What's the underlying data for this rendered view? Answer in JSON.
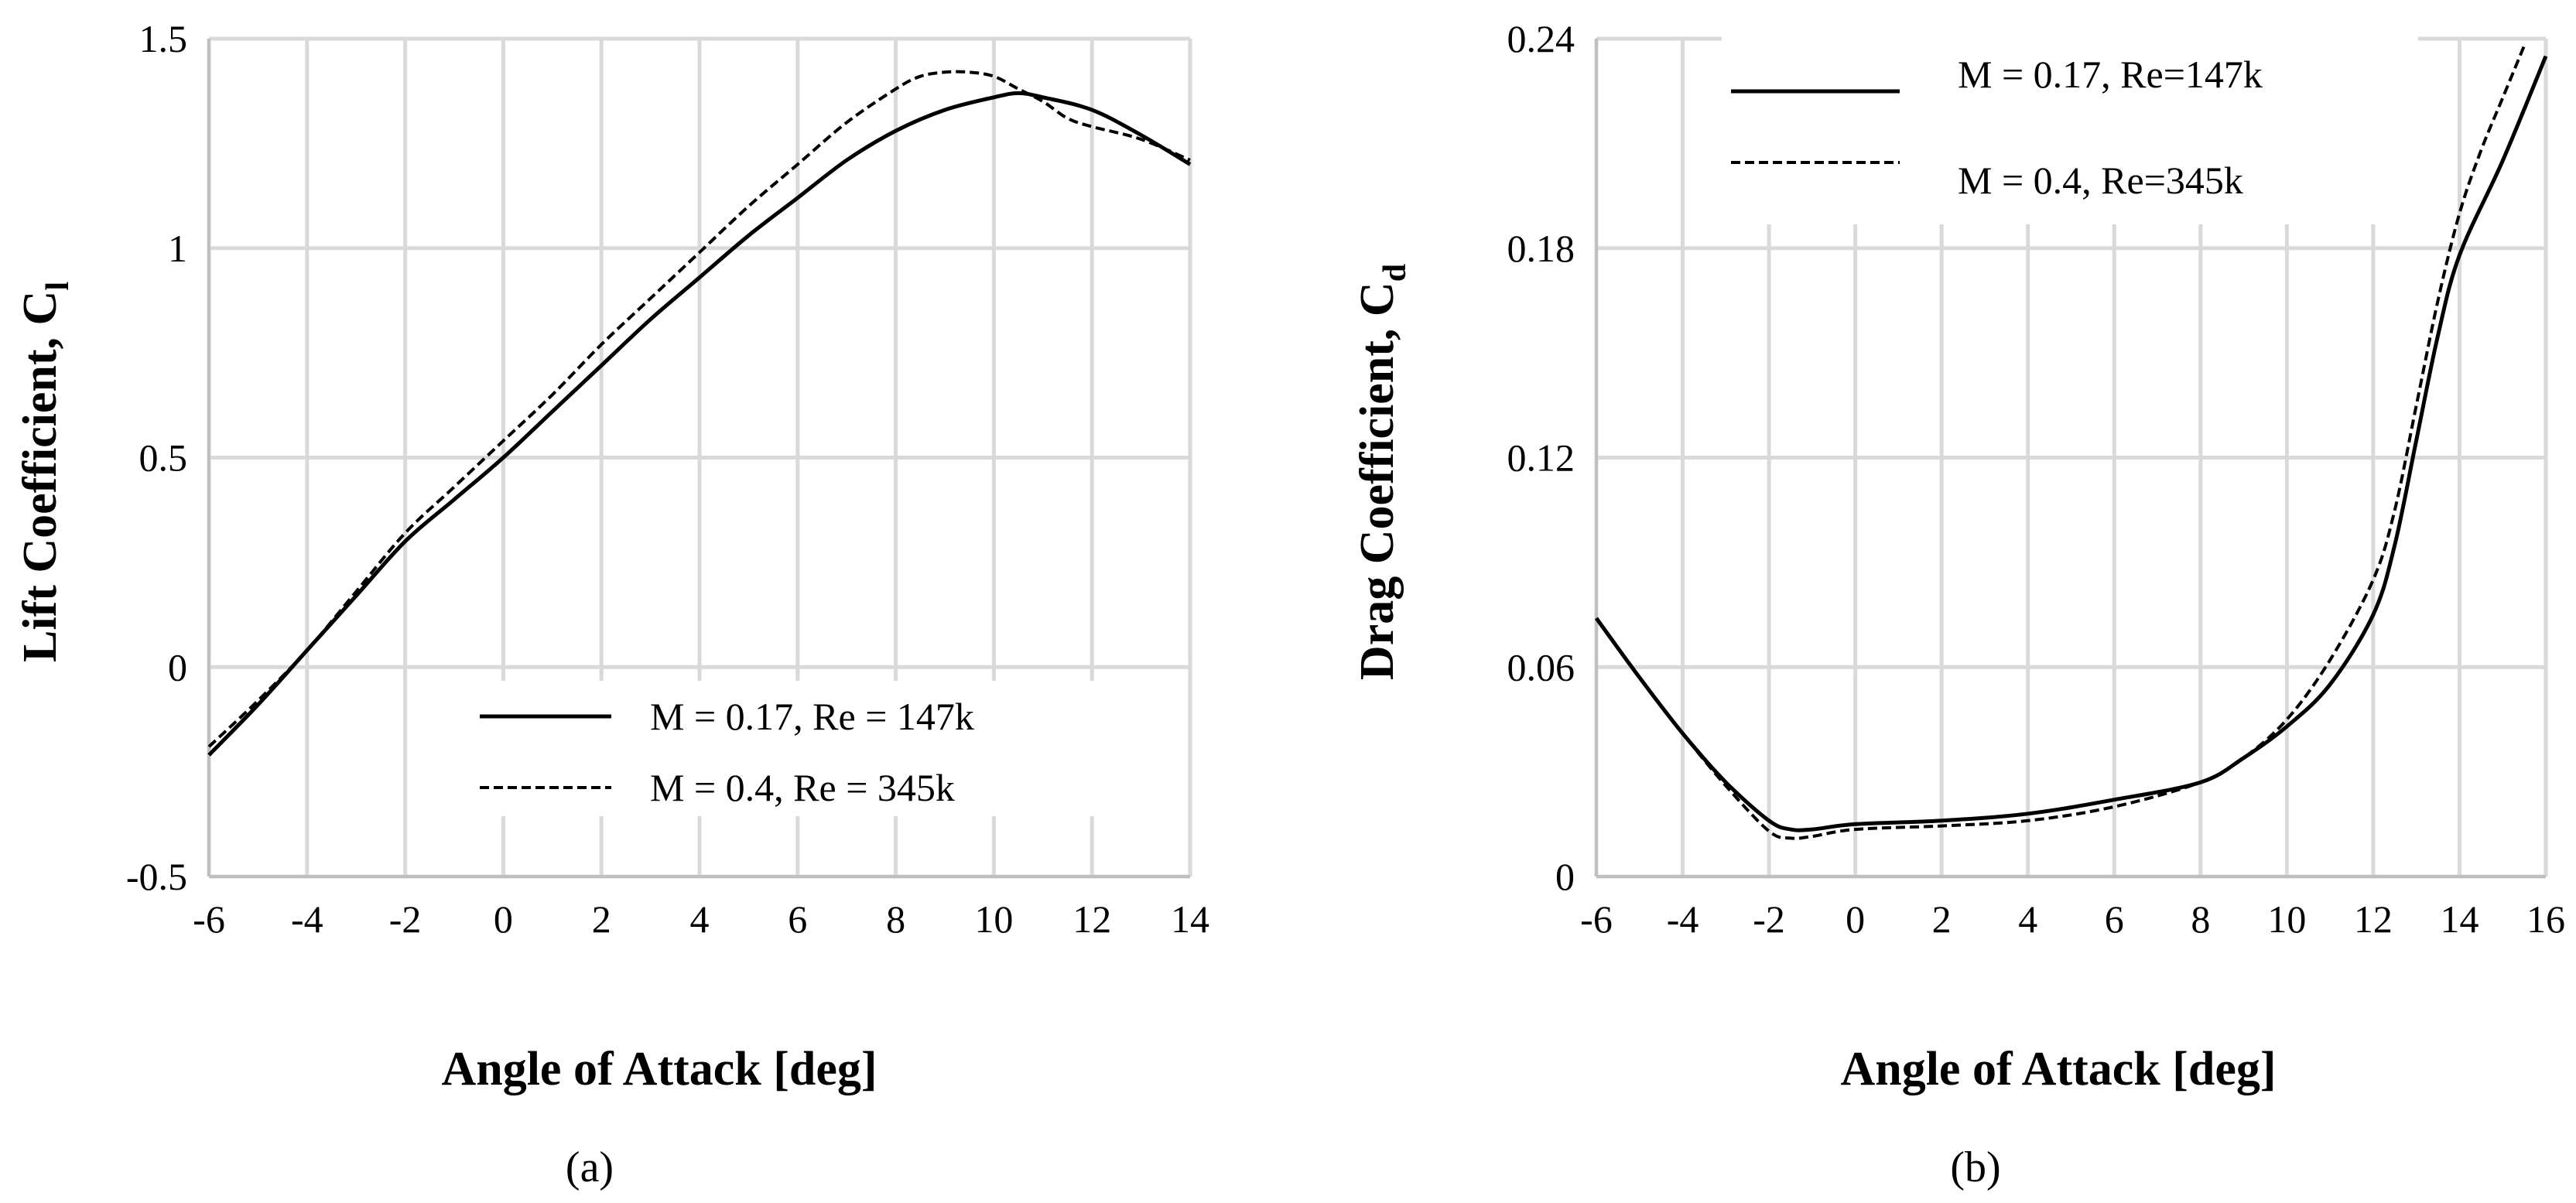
{
  "chart_data": [
    {
      "type": "line",
      "panel_label": "(a)",
      "title": "",
      "xlabel": "Angle of Attack [deg]",
      "ylabel": "Lift Coefficient, C",
      "ylabel_subscript": "l",
      "xlim": [
        -6,
        14
      ],
      "ylim": [
        -0.5,
        1.5
      ],
      "xticks": [
        "-6",
        "-4",
        "-2",
        "0",
        "2",
        "4",
        "6",
        "8",
        "10",
        "12",
        "14"
      ],
      "yticks": [
        "-0.5",
        "0",
        "0.5",
        "1",
        "1.5"
      ],
      "grid": true,
      "legend_position": "bottom-right",
      "series": [
        {
          "name": "M = 0.17, Re = 147k",
          "style": "solid",
          "x": [
            -6,
            -5,
            -4,
            -3,
            -2,
            -1,
            0,
            1,
            2,
            3,
            4,
            5,
            6,
            7,
            8,
            9,
            10,
            10.5,
            11,
            12,
            13,
            14
          ],
          "y": [
            -0.21,
            -0.09,
            0.04,
            0.17,
            0.3,
            0.4,
            0.5,
            0.61,
            0.72,
            0.83,
            0.93,
            1.03,
            1.12,
            1.21,
            1.28,
            1.33,
            1.36,
            1.37,
            1.36,
            1.33,
            1.27,
            1.2
          ]
        },
        {
          "name": "M = 0.4, Re = 345k",
          "style": "dashed",
          "x": [
            -6,
            -5,
            -4,
            -3,
            -2,
            -1,
            0,
            1,
            2,
            3,
            4,
            5,
            6,
            7,
            8,
            8.5,
            9,
            9.5,
            10,
            10.5,
            11,
            11.5,
            12,
            13,
            14
          ],
          "y": [
            -0.19,
            -0.08,
            0.04,
            0.18,
            0.32,
            0.43,
            0.54,
            0.65,
            0.77,
            0.88,
            0.99,
            1.1,
            1.2,
            1.3,
            1.38,
            1.41,
            1.42,
            1.42,
            1.41,
            1.38,
            1.35,
            1.31,
            1.29,
            1.26,
            1.21
          ]
        }
      ]
    },
    {
      "type": "line",
      "panel_label": "(b)",
      "title": "",
      "xlabel": "Angle of Attack [deg]",
      "ylabel": "Drag Coefficient, C",
      "ylabel_subscript": "d",
      "xlim": [
        -6,
        16
      ],
      "ylim": [
        0,
        0.24
      ],
      "xticks": [
        "-6",
        "-4",
        "-2",
        "0",
        "2",
        "4",
        "6",
        "8",
        "10",
        "12",
        "14",
        "16"
      ],
      "yticks": [
        "0",
        "0.06",
        "0.12",
        "0.18",
        "0.24"
      ],
      "grid": true,
      "legend_position": "top-left",
      "series": [
        {
          "name": "M = 0.17, Re=147k",
          "style": "solid",
          "x": [
            -6,
            -5,
            -4,
            -3,
            -2,
            -1.5,
            -1,
            0,
            2,
            4,
            6,
            8,
            9,
            10,
            11,
            12,
            12.5,
            13,
            13.5,
            14,
            15,
            16
          ],
          "y": [
            0.074,
            0.057,
            0.041,
            0.027,
            0.016,
            0.0135,
            0.0135,
            0.015,
            0.016,
            0.018,
            0.022,
            0.027,
            0.034,
            0.043,
            0.055,
            0.075,
            0.095,
            0.125,
            0.155,
            0.178,
            0.205,
            0.235
          ]
        },
        {
          "name": "M = 0.4, Re=345k",
          "style": "dashed",
          "x": [
            -6,
            -5,
            -4,
            -3,
            -2,
            -1.5,
            -1,
            0,
            2,
            4,
            6,
            8,
            9,
            10,
            11,
            12,
            12.5,
            13,
            13.5,
            14,
            14.5,
            15,
            15.5
          ],
          "y": [
            0.074,
            0.057,
            0.041,
            0.026,
            0.013,
            0.011,
            0.0115,
            0.0135,
            0.0145,
            0.016,
            0.02,
            0.027,
            0.034,
            0.045,
            0.062,
            0.085,
            0.105,
            0.135,
            0.165,
            0.19,
            0.208,
            0.223,
            0.238
          ]
        }
      ]
    }
  ]
}
